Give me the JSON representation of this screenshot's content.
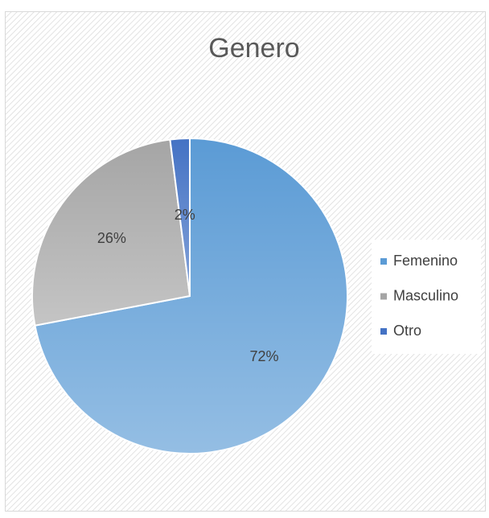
{
  "chart_data": {
    "type": "pie",
    "title": "Genero",
    "categories": [
      "Femenino",
      "Masculino",
      "Otro"
    ],
    "values": [
      72,
      26,
      2
    ],
    "value_labels": [
      "72%",
      "26%",
      "2%"
    ],
    "colors": [
      "#5b9bd5",
      "#a5a5a5",
      "#4472c4"
    ],
    "legend": "right"
  }
}
